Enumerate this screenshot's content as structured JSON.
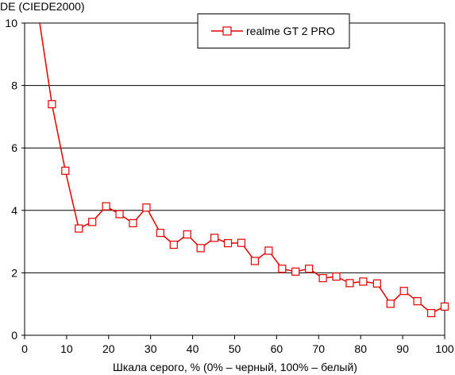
{
  "chart_data": {
    "type": "line",
    "ylabel": "DE (CIEDE2000)",
    "xlabel": "Шкала серого, % (0% – черный, 100% – белый)",
    "xlim": [
      0,
      100
    ],
    "ylim": [
      0,
      10
    ],
    "x_ticks": [
      0,
      10,
      20,
      30,
      40,
      50,
      60,
      70,
      80,
      90,
      100
    ],
    "y_ticks": [
      0,
      2,
      4,
      6,
      8,
      10
    ],
    "x_tick_labels": [
      "0",
      "10",
      "20",
      "30",
      "40",
      "50",
      "60",
      "70",
      "80",
      "90",
      "100"
    ],
    "y_tick_labels": [
      "0",
      "2",
      "4",
      "6",
      "8",
      "10"
    ],
    "grid": "horizontal",
    "legend_position": "top-right",
    "series_color": "#e00000",
    "series": [
      {
        "name": "realme GT 2 PRO",
        "line_start": {
          "x": 3.6,
          "y": 10.0
        },
        "points": [
          {
            "x": 6.5,
            "y": 7.4
          },
          {
            "x": 9.7,
            "y": 5.27
          },
          {
            "x": 12.9,
            "y": 3.42
          },
          {
            "x": 16.1,
            "y": 3.63
          },
          {
            "x": 19.4,
            "y": 4.13
          },
          {
            "x": 22.6,
            "y": 3.88
          },
          {
            "x": 25.8,
            "y": 3.59
          },
          {
            "x": 29.0,
            "y": 4.09
          },
          {
            "x": 32.3,
            "y": 3.28
          },
          {
            "x": 35.5,
            "y": 2.9
          },
          {
            "x": 38.7,
            "y": 3.23
          },
          {
            "x": 41.9,
            "y": 2.79
          },
          {
            "x": 45.2,
            "y": 3.12
          },
          {
            "x": 48.4,
            "y": 2.95
          },
          {
            "x": 51.6,
            "y": 2.96
          },
          {
            "x": 54.8,
            "y": 2.38
          },
          {
            "x": 58.1,
            "y": 2.71
          },
          {
            "x": 61.3,
            "y": 2.13
          },
          {
            "x": 64.5,
            "y": 2.04
          },
          {
            "x": 67.7,
            "y": 2.13
          },
          {
            "x": 71.0,
            "y": 1.83
          },
          {
            "x": 74.2,
            "y": 1.88
          },
          {
            "x": 77.4,
            "y": 1.67
          },
          {
            "x": 80.6,
            "y": 1.72
          },
          {
            "x": 83.9,
            "y": 1.66
          },
          {
            "x": 87.1,
            "y": 1.01
          },
          {
            "x": 90.3,
            "y": 1.42
          },
          {
            "x": 93.5,
            "y": 1.09
          },
          {
            "x": 96.8,
            "y": 0.71
          },
          {
            "x": 100.0,
            "y": 0.92
          }
        ]
      }
    ]
  }
}
